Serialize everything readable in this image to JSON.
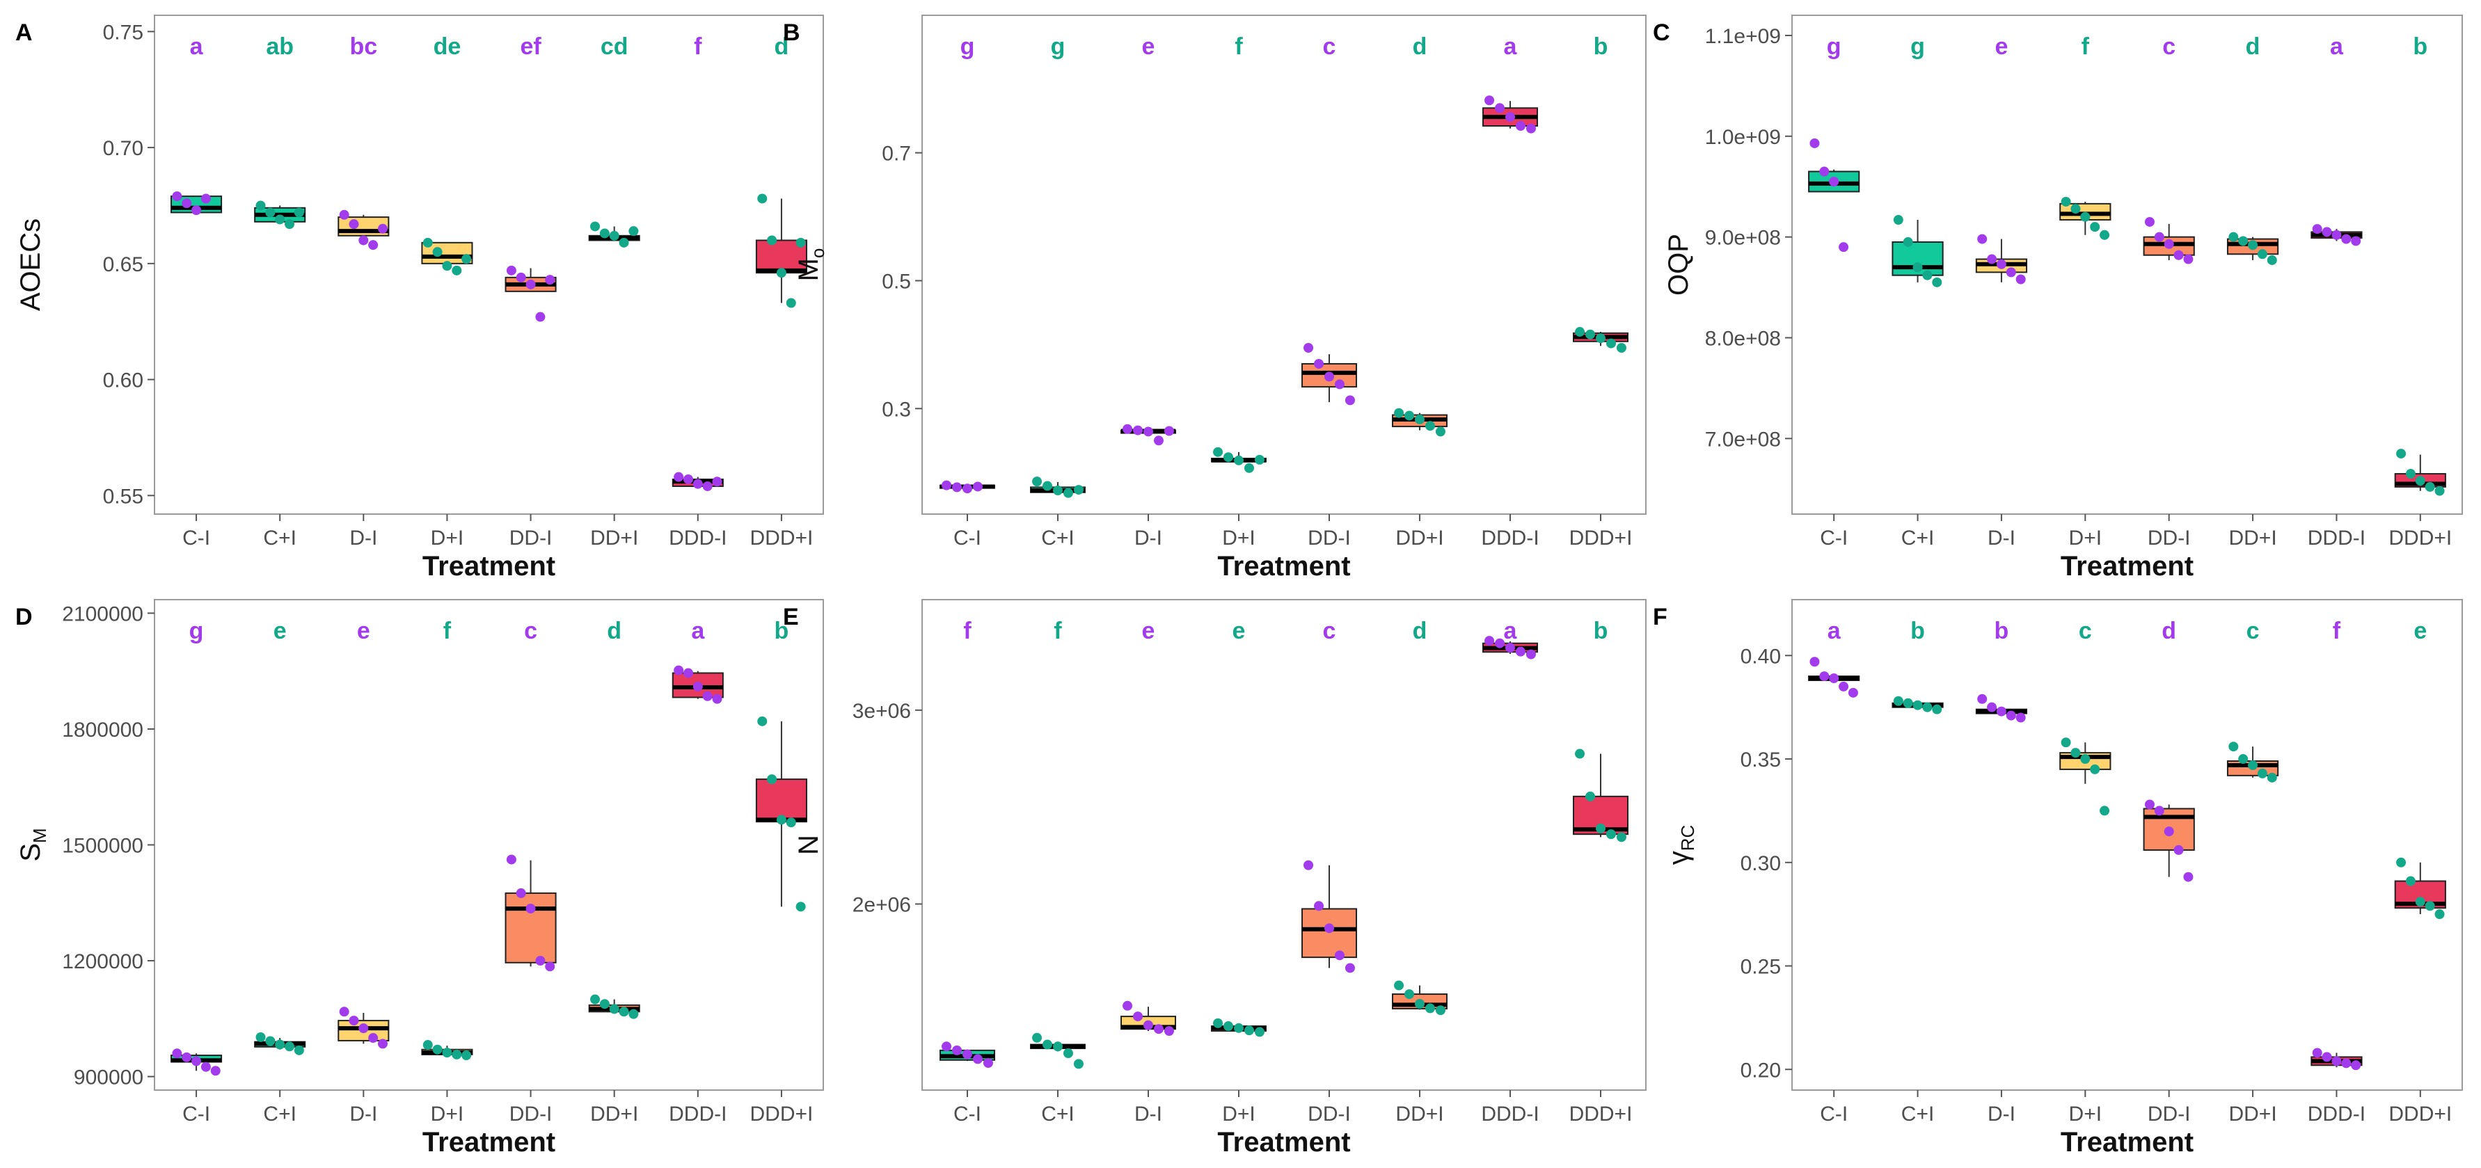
{
  "figure": {
    "xlabel": "Treatment",
    "colors": {
      "purple": "#A23BEC",
      "teal": "#13A889",
      "box_C": "#11C99B",
      "box_D": "#FFD36E",
      "box_DD": "#F98C62",
      "box_DDD": "#E8395C",
      "frame": "#9a9a9a",
      "tick_text": "#4d4d4d",
      "axis_title": "#111111"
    }
  },
  "chart_data": [
    {
      "panel": "A",
      "type": "box",
      "ylabel": "AOECs",
      "xlabel": "Treatment",
      "categories": [
        "C-I",
        "C+I",
        "D-I",
        "D+I",
        "DD-I",
        "DD+I",
        "DDD-I",
        "DDD+I"
      ],
      "ylim": [
        0.542,
        0.757
      ],
      "yticks": [
        0.55,
        0.6,
        0.65,
        0.7,
        0.75
      ],
      "ytick_labels": [
        "0.55",
        "0.60",
        "0.65",
        "0.70",
        "0.75"
      ],
      "letters": [
        "a",
        "ab",
        "bc",
        "de",
        "ef",
        "cd",
        "f",
        "d"
      ],
      "boxes": [
        {
          "q1": 0.672,
          "median": 0.674,
          "q3": 0.679,
          "wlo": 0.672,
          "whi": 0.679,
          "points": [
            0.679,
            0.676,
            0.673,
            0.678
          ]
        },
        {
          "q1": 0.668,
          "median": 0.671,
          "q3": 0.674,
          "wlo": 0.667,
          "whi": 0.675,
          "points": [
            0.675,
            0.672,
            0.669,
            0.667,
            0.672
          ]
        },
        {
          "q1": 0.662,
          "median": 0.664,
          "q3": 0.67,
          "wlo": 0.658,
          "whi": 0.671,
          "points": [
            0.671,
            0.667,
            0.66,
            0.658,
            0.665
          ]
        },
        {
          "q1": 0.65,
          "median": 0.653,
          "q3": 0.659,
          "wlo": 0.647,
          "whi": 0.659,
          "points": [
            0.659,
            0.655,
            0.649,
            0.647,
            0.652
          ]
        },
        {
          "q1": 0.638,
          "median": 0.641,
          "q3": 0.644,
          "wlo": 0.638,
          "whi": 0.648,
          "points": [
            0.647,
            0.644,
            0.641,
            0.627,
            0.643
          ]
        },
        {
          "q1": 0.66,
          "median": 0.661,
          "q3": 0.662,
          "wlo": 0.66,
          "whi": 0.666,
          "points": [
            0.666,
            0.663,
            0.662,
            0.659,
            0.664
          ]
        },
        {
          "q1": 0.554,
          "median": 0.556,
          "q3": 0.557,
          "wlo": 0.554,
          "whi": 0.558,
          "points": [
            0.558,
            0.557,
            0.555,
            0.554,
            0.556
          ]
        },
        {
          "q1": 0.646,
          "median": 0.647,
          "q3": 0.66,
          "wlo": 0.633,
          "whi": 0.678,
          "points": [
            0.678,
            0.66,
            0.646,
            0.633,
            0.659
          ]
        }
      ]
    },
    {
      "panel": "B",
      "type": "box",
      "ylabel": "Mo",
      "ylabel_main": "M",
      "ylabel_sub": "o",
      "xlabel": "Treatment",
      "categories": [
        "C-I",
        "C+I",
        "D-I",
        "D+I",
        "DD-I",
        "DD+I",
        "DDD-I",
        "DDD+I"
      ],
      "ylim": [
        0.135,
        0.915
      ],
      "yticks": [
        0.3,
        0.5,
        0.7
      ],
      "ytick_labels": [
        "0.3",
        "0.5",
        "0.7"
      ],
      "letters": [
        "g",
        "g",
        "e",
        "f",
        "c",
        "d",
        "a",
        "b"
      ],
      "boxes": [
        {
          "q1": 0.177,
          "median": 0.178,
          "q3": 0.18,
          "wlo": 0.176,
          "whi": 0.18,
          "points": [
            0.18,
            0.177,
            0.175,
            0.178
          ]
        },
        {
          "q1": 0.169,
          "median": 0.172,
          "q3": 0.177,
          "wlo": 0.165,
          "whi": 0.185,
          "points": [
            0.186,
            0.179,
            0.172,
            0.168,
            0.173
          ]
        },
        {
          "q1": 0.263,
          "median": 0.265,
          "q3": 0.266,
          "wlo": 0.263,
          "whi": 0.268,
          "points": [
            0.268,
            0.266,
            0.264,
            0.25,
            0.265
          ]
        },
        {
          "q1": 0.217,
          "median": 0.219,
          "q3": 0.222,
          "wlo": 0.212,
          "whi": 0.232,
          "points": [
            0.232,
            0.224,
            0.219,
            0.207,
            0.22
          ]
        },
        {
          "q1": 0.334,
          "median": 0.356,
          "q3": 0.37,
          "wlo": 0.31,
          "whi": 0.385,
          "points": [
            0.395,
            0.37,
            0.35,
            0.338,
            0.313
          ]
        },
        {
          "q1": 0.272,
          "median": 0.283,
          "q3": 0.29,
          "wlo": 0.266,
          "whi": 0.293,
          "points": [
            0.293,
            0.289,
            0.283,
            0.273,
            0.264
          ]
        },
        {
          "q1": 0.742,
          "median": 0.756,
          "q3": 0.77,
          "wlo": 0.738,
          "whi": 0.781,
          "points": [
            0.782,
            0.77,
            0.756,
            0.742,
            0.738
          ]
        },
        {
          "q1": 0.405,
          "median": 0.412,
          "q3": 0.418,
          "wlo": 0.398,
          "whi": 0.42,
          "points": [
            0.42,
            0.416,
            0.41,
            0.402,
            0.395
          ]
        }
      ]
    },
    {
      "panel": "C",
      "type": "box",
      "ylabel": "OQP",
      "xlabel": "Treatment",
      "categories": [
        "C-I",
        "C+I",
        "D-I",
        "D+I",
        "DD-I",
        "DD+I",
        "DDD-I",
        "DDD+I"
      ],
      "ylim": [
        625000000,
        1120000000
      ],
      "yticks": [
        700000000,
        800000000,
        900000000,
        1000000000,
        1100000000
      ],
      "ytick_labels": [
        "7.0e+08",
        "8.0e+08",
        "9.0e+08",
        "1.0e+09",
        "1.1e+09"
      ],
      "letters": [
        "g",
        "g",
        "e",
        "f",
        "c",
        "d",
        "a",
        "b"
      ],
      "boxes": [
        {
          "q1": 945000000,
          "median": 953000000,
          "q3": 965000000,
          "wlo": 945000000,
          "whi": 967000000,
          "points": [
            993000000,
            965000000,
            955000000,
            890000000
          ]
        },
        {
          "q1": 862000000,
          "median": 870000000,
          "q3": 895000000,
          "wlo": 855000000,
          "whi": 917000000,
          "points": [
            917000000,
            895000000,
            870000000,
            862000000,
            855000000
          ]
        },
        {
          "q1": 865000000,
          "median": 873000000,
          "q3": 878000000,
          "wlo": 855000000,
          "whi": 898000000,
          "points": [
            898000000,
            878000000,
            873000000,
            865000000,
            858000000
          ]
        },
        {
          "q1": 917000000,
          "median": 923000000,
          "q3": 933000000,
          "wlo": 902000000,
          "whi": 935000000,
          "points": [
            935000000,
            928000000,
            920000000,
            910000000,
            902000000
          ]
        },
        {
          "q1": 882000000,
          "median": 893000000,
          "q3": 900000000,
          "wlo": 877000000,
          "whi": 913000000,
          "points": [
            915000000,
            900000000,
            893000000,
            882000000,
            878000000
          ]
        },
        {
          "q1": 883000000,
          "median": 893000000,
          "q3": 898000000,
          "wlo": 877000000,
          "whi": 900000000,
          "points": [
            900000000,
            896000000,
            892000000,
            883000000,
            877000000
          ]
        },
        {
          "q1": 899000000,
          "median": 902000000,
          "q3": 905000000,
          "wlo": 896000000,
          "whi": 908000000,
          "points": [
            908000000,
            905000000,
            902000000,
            898000000,
            896000000
          ]
        },
        {
          "q1": 652000000,
          "median": 655000000,
          "q3": 665000000,
          "wlo": 648000000,
          "whi": 684000000,
          "points": [
            685000000,
            665000000,
            658000000,
            652000000,
            648000000
          ]
        }
      ]
    },
    {
      "panel": "D",
      "type": "box",
      "ylabel": "SM",
      "ylabel_main": "S",
      "ylabel_sub": "M",
      "xlabel": "Treatment",
      "categories": [
        "C-I",
        "C+I",
        "D-I",
        "D+I",
        "DD-I",
        "DD+I",
        "DDD-I",
        "DDD+I"
      ],
      "ylim": [
        865000,
        2135000
      ],
      "yticks": [
        900000,
        1200000,
        1500000,
        1800000,
        2100000
      ],
      "ytick_labels": [
        "900000",
        "1200000",
        "1500000",
        "1800000",
        "2100000"
      ],
      "letters": [
        "g",
        "e",
        "e",
        "f",
        "c",
        "d",
        "a",
        "b"
      ],
      "boxes": [
        {
          "q1": 938000,
          "median": 942000,
          "q3": 955000,
          "wlo": 915000,
          "whi": 960000,
          "points": [
            960000,
            950000,
            940000,
            925000,
            915000
          ]
        },
        {
          "q1": 977000,
          "median": 985000,
          "q3": 990000,
          "wlo": 970000,
          "whi": 1000000,
          "points": [
            1002000,
            992000,
            983000,
            978000,
            968000
          ]
        },
        {
          "q1": 993000,
          "median": 1025000,
          "q3": 1045000,
          "wlo": 985000,
          "whi": 1065000,
          "points": [
            1068000,
            1045000,
            1025000,
            1000000,
            985000
          ]
        },
        {
          "q1": 957000,
          "median": 962000,
          "q3": 970000,
          "wlo": 955000,
          "whi": 980000,
          "points": [
            982000,
            970000,
            962000,
            957000,
            955000
          ]
        },
        {
          "q1": 1195000,
          "median": 1335000,
          "q3": 1375000,
          "wlo": 1185000,
          "whi": 1460000,
          "points": [
            1462000,
            1375000,
            1335000,
            1200000,
            1185000
          ]
        },
        {
          "q1": 1068000,
          "median": 1075000,
          "q3": 1085000,
          "wlo": 1063000,
          "whi": 1100000,
          "points": [
            1100000,
            1088000,
            1075000,
            1068000,
            1062000
          ]
        },
        {
          "q1": 1882000,
          "median": 1908000,
          "q3": 1945000,
          "wlo": 1878000,
          "whi": 1950000,
          "points": [
            1952000,
            1945000,
            1910000,
            1885000,
            1878000
          ]
        },
        {
          "q1": 1560000,
          "median": 1565000,
          "q3": 1670000,
          "wlo": 1340000,
          "whi": 1820000,
          "points": [
            1820000,
            1670000,
            1565000,
            1558000,
            1340000
          ]
        }
      ]
    },
    {
      "panel": "E",
      "type": "box",
      "ylabel": "N",
      "xlabel": "Treatment",
      "categories": [
        "C-I",
        "C+I",
        "D-I",
        "D+I",
        "DD-I",
        "DD+I",
        "DDD-I",
        "DDD+I"
      ],
      "ylim": [
        1040000,
        3570000
      ],
      "yticks": [
        2000000,
        3000000
      ],
      "ytick_labels": [
        "2e+06",
        "3e+06"
      ],
      "letters": [
        "f",
        "f",
        "e",
        "e",
        "c",
        "d",
        "a",
        "b"
      ],
      "boxes": [
        {
          "q1": 1195000,
          "median": 1215000,
          "q3": 1245000,
          "wlo": 1190000,
          "whi": 1250000,
          "points": [
            1265000,
            1245000,
            1225000,
            1200000,
            1180000
          ]
        },
        {
          "q1": 1255000,
          "median": 1265000,
          "q3": 1275000,
          "wlo": 1240000,
          "whi": 1290000,
          "points": [
            1310000,
            1275000,
            1265000,
            1230000,
            1175000
          ]
        },
        {
          "q1": 1355000,
          "median": 1365000,
          "q3": 1420000,
          "wlo": 1345000,
          "whi": 1470000,
          "points": [
            1475000,
            1420000,
            1375000,
            1355000,
            1345000
          ]
        },
        {
          "q1": 1345000,
          "median": 1360000,
          "q3": 1370000,
          "wlo": 1340000,
          "whi": 1385000,
          "points": [
            1385000,
            1370000,
            1360000,
            1348000,
            1340000
          ]
        },
        {
          "q1": 1725000,
          "median": 1870000,
          "q3": 1975000,
          "wlo": 1670000,
          "whi": 2200000,
          "points": [
            2200000,
            1990000,
            1875000,
            1735000,
            1670000
          ]
        },
        {
          "q1": 1460000,
          "median": 1480000,
          "q3": 1535000,
          "wlo": 1455000,
          "whi": 1580000,
          "points": [
            1580000,
            1535000,
            1485000,
            1462000,
            1452000
          ]
        },
        {
          "q1": 3300000,
          "median": 3320000,
          "q3": 3345000,
          "wlo": 3290000,
          "whi": 3355000,
          "points": [
            3358000,
            3345000,
            3322000,
            3302000,
            3288000
          ]
        },
        {
          "q1": 2360000,
          "median": 2385000,
          "q3": 2555000,
          "wlo": 2345000,
          "whi": 2775000,
          "points": [
            2775000,
            2555000,
            2390000,
            2360000,
            2345000
          ]
        }
      ]
    },
    {
      "panel": "F",
      "type": "box",
      "ylabel": "γRC",
      "ylabel_main": "γ",
      "ylabel_sub": "RC",
      "xlabel": "Treatment",
      "categories": [
        "C-I",
        "C+I",
        "D-I",
        "D+I",
        "DD-I",
        "DD+I",
        "DDD-I",
        "DDD+I"
      ],
      "ylim": [
        0.19,
        0.427
      ],
      "yticks": [
        0.2,
        0.25,
        0.3,
        0.35,
        0.4
      ],
      "ytick_labels": [
        "0.20",
        "0.25",
        "0.30",
        "0.35",
        "0.40"
      ],
      "letters": [
        "a",
        "b",
        "b",
        "c",
        "d",
        "c",
        "f",
        "e"
      ],
      "boxes": [
        {
          "q1": 0.388,
          "median": 0.389,
          "q3": 0.39,
          "wlo": 0.387,
          "whi": 0.391,
          "points": [
            0.397,
            0.39,
            0.389,
            0.385,
            0.382
          ]
        },
        {
          "q1": 0.375,
          "median": 0.376,
          "q3": 0.377,
          "wlo": 0.374,
          "whi": 0.377,
          "points": [
            0.378,
            0.377,
            0.376,
            0.375,
            0.374
          ]
        },
        {
          "q1": 0.372,
          "median": 0.373,
          "q3": 0.374,
          "wlo": 0.371,
          "whi": 0.375,
          "points": [
            0.379,
            0.375,
            0.373,
            0.371,
            0.37
          ]
        },
        {
          "q1": 0.345,
          "median": 0.351,
          "q3": 0.353,
          "wlo": 0.338,
          "whi": 0.358,
          "points": [
            0.358,
            0.353,
            0.35,
            0.345,
            0.325
          ]
        },
        {
          "q1": 0.306,
          "median": 0.322,
          "q3": 0.326,
          "wlo": 0.293,
          "whi": 0.328,
          "points": [
            0.328,
            0.325,
            0.315,
            0.306,
            0.293
          ]
        },
        {
          "q1": 0.342,
          "median": 0.347,
          "q3": 0.349,
          "wlo": 0.341,
          "whi": 0.356,
          "points": [
            0.356,
            0.35,
            0.347,
            0.343,
            0.341
          ]
        },
        {
          "q1": 0.202,
          "median": 0.204,
          "q3": 0.206,
          "wlo": 0.201,
          "whi": 0.208,
          "points": [
            0.208,
            0.206,
            0.204,
            0.203,
            0.202
          ]
        },
        {
          "q1": 0.278,
          "median": 0.28,
          "q3": 0.291,
          "wlo": 0.275,
          "whi": 0.3,
          "points": [
            0.3,
            0.291,
            0.281,
            0.279,
            0.275
          ]
        }
      ]
    }
  ]
}
